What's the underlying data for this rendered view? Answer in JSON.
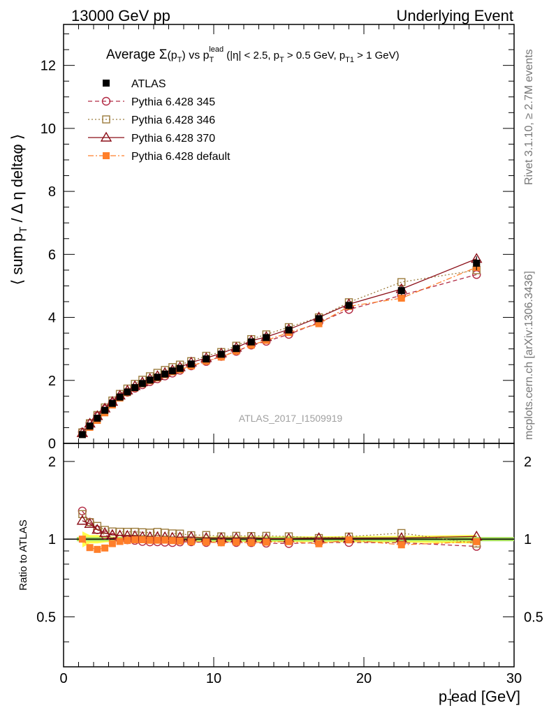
{
  "header": {
    "left": "13000 GeV pp",
    "right": "Underlying Event"
  },
  "side_labels": {
    "rivet": "Rivet 3.1.10, ≥ 2.7M events",
    "mcplots": "mcplots.cern.ch [arXiv:1306.3436]"
  },
  "watermark": "ATLAS_2017_I1509919",
  "chart_data": [
    {
      "type": "scatter",
      "title": "Average Σ(pT) vs pT^lead (|η| < 2.5, pT > 0.5 GeV, pT1 > 1 GeV)",
      "ylabel": "⟨ sum pT / Δ η deltaφ ⟩",
      "xlabel": "pT^lead [GeV]",
      "xlim": [
        0,
        30
      ],
      "ylim": [
        0,
        13.3
      ],
      "xticks": [
        "0",
        "10",
        "20",
        "30"
      ],
      "yticks": [
        "0",
        "2",
        "4",
        "6",
        "8",
        "10",
        "12"
      ],
      "legend_position": "top-left",
      "x": [
        1.25,
        1.75,
        2.25,
        2.75,
        3.25,
        3.75,
        4.25,
        4.75,
        5.25,
        5.75,
        6.25,
        6.75,
        7.25,
        7.75,
        8.5,
        9.5,
        10.5,
        11.5,
        12.5,
        13.5,
        15.0,
        17.0,
        19.0,
        22.5,
        27.5
      ],
      "series": [
        {
          "name": "ATLAS",
          "color": "#000000",
          "marker": "filled-square",
          "values": [
            0.28,
            0.55,
            0.8,
            1.05,
            1.27,
            1.47,
            1.63,
            1.77,
            1.9,
            2.01,
            2.1,
            2.2,
            2.3,
            2.38,
            2.52,
            2.68,
            2.83,
            3.01,
            3.22,
            3.36,
            3.6,
            3.96,
            4.38,
            4.85,
            5.72
          ]
        },
        {
          "name": "Pythia 6.428 345",
          "color": "#b22a44",
          "marker": "open-circle",
          "dash": "dashed",
          "values": [
            0.36,
            0.64,
            0.87,
            1.09,
            1.29,
            1.47,
            1.62,
            1.75,
            1.86,
            1.96,
            2.05,
            2.14,
            2.23,
            2.32,
            2.46,
            2.6,
            2.76,
            2.92,
            3.12,
            3.24,
            3.46,
            3.84,
            4.25,
            4.7,
            5.36
          ]
        },
        {
          "name": "Pythia 6.428 346",
          "color": "#9b7b3c",
          "marker": "open-square",
          "dash": "dotted",
          "values": [
            0.35,
            0.64,
            0.9,
            1.14,
            1.36,
            1.57,
            1.74,
            1.89,
            2.02,
            2.13,
            2.24,
            2.33,
            2.42,
            2.5,
            2.61,
            2.78,
            2.9,
            3.1,
            3.31,
            3.46,
            3.69,
            4.0,
            4.48,
            5.12,
            5.5
          ]
        },
        {
          "name": "Pythia 6.428 370",
          "color": "#8b0f18",
          "marker": "open-triangle",
          "dash": "solid",
          "values": [
            0.33,
            0.63,
            0.87,
            1.11,
            1.32,
            1.52,
            1.68,
            1.82,
            1.94,
            2.05,
            2.14,
            2.24,
            2.33,
            2.42,
            2.57,
            2.71,
            2.86,
            3.04,
            3.26,
            3.38,
            3.62,
            4.0,
            4.42,
            4.9,
            5.86
          ]
        },
        {
          "name": "Pythia 6.428 default",
          "color": "#ff7f2a",
          "marker": "filled-square",
          "dash": "dashdot",
          "values": [
            0.28,
            0.51,
            0.73,
            0.97,
            1.22,
            1.44,
            1.61,
            1.76,
            1.89,
            1.99,
            2.08,
            2.18,
            2.27,
            2.34,
            2.46,
            2.61,
            2.74,
            2.93,
            3.12,
            3.27,
            3.52,
            3.8,
            4.35,
            4.61,
            5.59
          ]
        }
      ],
      "atlas_errors": [
        0.02,
        0.02,
        0.03,
        0.03,
        0.03,
        0.03,
        0.04,
        0.04,
        0.04,
        0.04,
        0.05,
        0.05,
        0.05,
        0.05,
        0.06,
        0.06,
        0.07,
        0.07,
        0.08,
        0.08,
        0.09,
        0.1,
        0.12,
        0.14,
        0.22
      ]
    },
    {
      "type": "scatter",
      "ylabel": "Ratio to ATLAS",
      "xlabel": "pT^lead [GeV]",
      "xlim": [
        0,
        30
      ],
      "ylim": [
        0.32,
        2.35
      ],
      "yticks": [
        "0.5",
        "1",
        "2"
      ],
      "reference": 1,
      "band_color": "#ffff00",
      "band_inner_color": "#a8e060"
    }
  ]
}
